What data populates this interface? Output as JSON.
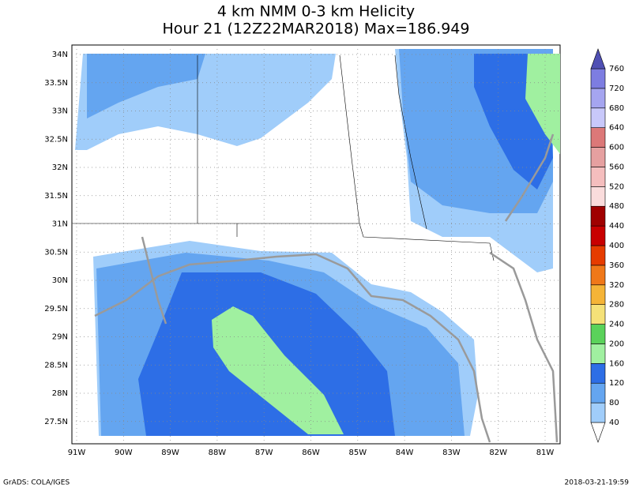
{
  "title": "4 km NMM 0-3 km Helicity",
  "subtitle": "Hour 21 (12Z22MAR2018) Max=186.949",
  "lon_labels": [
    "91W",
    "90W",
    "89W",
    "88W",
    "87W",
    "86W",
    "85W",
    "84W",
    "83W",
    "82W",
    "81W"
  ],
  "lat_labels": [
    "34N",
    "33.5N",
    "33N",
    "32.5N",
    "32N",
    "31.5N",
    "31N",
    "30.5N",
    "30N",
    "29.5N",
    "29N",
    "28.5N",
    "28N",
    "27.5N"
  ],
  "colorbar": {
    "levels": [
      40,
      80,
      120,
      160,
      200,
      240,
      280,
      320,
      360,
      400,
      440,
      480,
      520,
      560,
      600,
      640,
      680,
      720,
      760
    ],
    "colors": [
      "#ffffff",
      "#a0cdfa",
      "#64a5f0",
      "#2d6ee6",
      "#a0f0a0",
      "#5ad25a",
      "#f5e178",
      "#f5b437",
      "#f07819",
      "#e63c00",
      "#c80000",
      "#a00000",
      "#fadcdc",
      "#f5bebe",
      "#e6a0a0",
      "#dc7878",
      "#c8c8fa",
      "#a5a5f0",
      "#7d7de1",
      "#5050b4"
    ]
  },
  "footer": {
    "left": "GrADS: COLA/IGES",
    "right": "2018-03-21-19:59"
  }
}
